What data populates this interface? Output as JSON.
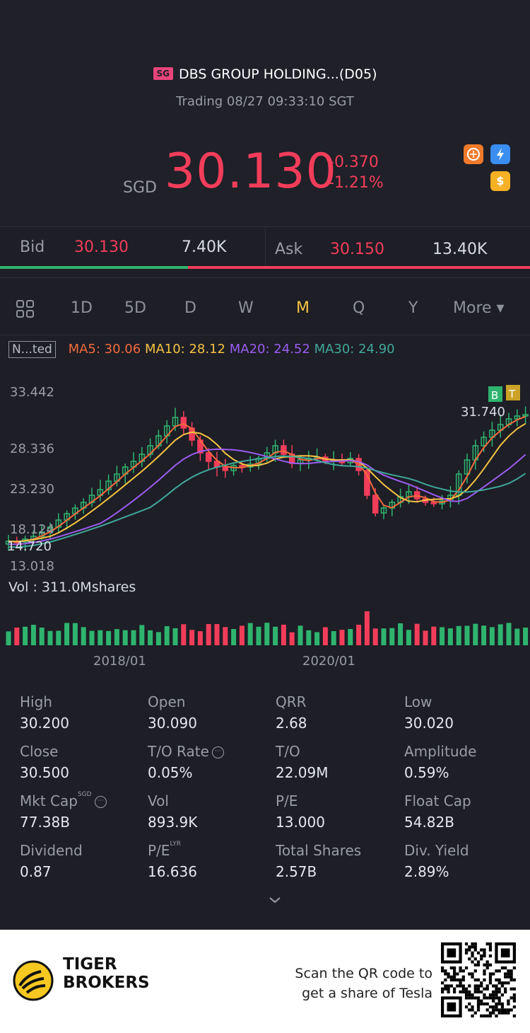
{
  "header": {
    "market_badge": "SG",
    "title": "DBS GROUP HOLDING...(D05)",
    "status": "Trading 08/27 09:33:10 SGT",
    "currency": "SGD",
    "price": "30.130",
    "change": "-0.370",
    "change_pct": "-1.21%"
  },
  "bid_ask": {
    "bid_label": "Bid",
    "bid_price": "30.130",
    "bid_size": "7.40K",
    "ask_label": "Ask",
    "ask_price": "30.150",
    "ask_size": "13.40K",
    "bid_ratio": 0.355
  },
  "tabs": [
    "1D",
    "5D",
    "D",
    "W",
    "M",
    "Q",
    "Y",
    "More ▾"
  ],
  "active_tab": "M",
  "indicators": {
    "nav_label": "N...ted",
    "ma5": "MA5: 30.06",
    "ma10": "MA10: 28.12",
    "ma20": "MA20: 24.52",
    "ma30": "MA30: 24.90",
    "colors": {
      "ma5": "#f26a3d",
      "ma10": "#f5c342",
      "ma20": "#9b5cf0",
      "ma30": "#3fa89a"
    }
  },
  "volume": {
    "label": "Vol  : 311.0Mshares"
  },
  "chart_data": {
    "type": "candlestick",
    "y_tick_labels": [
      "33.442",
      "28.336",
      "23.230",
      "18.124",
      "13.018"
    ],
    "ylim": [
      13.018,
      33.442
    ],
    "x_tick_labels": [
      "2018/01",
      "2020/01"
    ],
    "annotations": {
      "high_marker": "31.740",
      "low_marker": "14.720",
      "markers": [
        "B",
        "T"
      ]
    },
    "colors": {
      "up": "#2fb46f",
      "down": "#f23d5a"
    }
  },
  "stats": [
    {
      "label": "High",
      "value": "30.200"
    },
    {
      "label": "Open",
      "value": "30.090"
    },
    {
      "label": "QRR",
      "value": "2.68"
    },
    {
      "label": "Low",
      "value": "30.020"
    },
    {
      "label": "Close",
      "value": "30.500"
    },
    {
      "label": "T/O Rate",
      "value": "0.05%"
    },
    {
      "label": "T/O",
      "value": "22.09M"
    },
    {
      "label": "Amplitude",
      "value": "0.59%"
    },
    {
      "label": "Mkt Cap",
      "value": "77.38B",
      "sup": "SGD"
    },
    {
      "label": "Vol",
      "value": "893.9K"
    },
    {
      "label": "P/E",
      "value": "13.000"
    },
    {
      "label": "Float Cap",
      "value": "54.82B"
    },
    {
      "label": "Dividend",
      "value": "0.87"
    },
    {
      "label": "P/E",
      "value": "16.636",
      "sup": "LYR"
    },
    {
      "label": "Total Shares",
      "value": "2.57B"
    },
    {
      "label": "Div. Yield",
      "value": "2.89%"
    }
  ],
  "footer": {
    "brand_line1": "TIGER",
    "brand_line2": "BROKERS",
    "scan_line1": "Scan the QR code to",
    "scan_line2": "get a share of Tesla"
  }
}
